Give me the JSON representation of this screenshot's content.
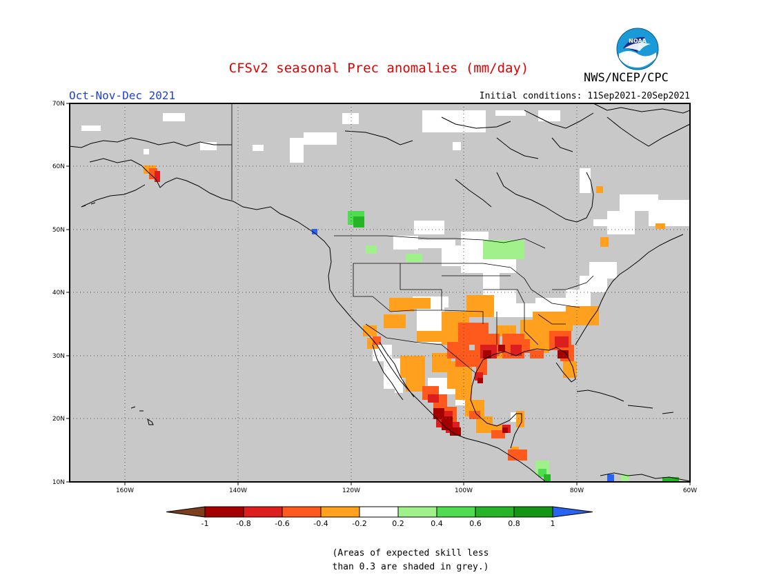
{
  "title": "CFSv2 seasonal Prec anomalies (mm/day)",
  "period": "Oct-Nov-Dec 2021",
  "initial_conditions": "Initial conditions: 11Sep2021-20Sep2021",
  "agency": "NWS/NCEP/CPC",
  "logo_text": "NOAA",
  "lat_labels": [
    "70N",
    "60N",
    "50N",
    "40N",
    "30N",
    "20N",
    "10N"
  ],
  "lon_labels": [
    "160W",
    "140W",
    "120W",
    "100W",
    "80W",
    "60W"
  ],
  "colorbar": {
    "ticks": [
      "-1",
      "-0.8",
      "-0.6",
      "-0.4",
      "-0.2",
      "0.2",
      "0.4",
      "0.6",
      "0.8",
      "1"
    ],
    "colors": [
      "#7b3f1e",
      "#a50000",
      "#dc1e1e",
      "#ff5a1e",
      "#ffa01e",
      "#ffffff",
      "#a0f08c",
      "#50dc50",
      "#28b428",
      "#149614",
      "#2864f0"
    ]
  },
  "note_line1": "(Areas of expected skill less",
  "note_line2": "than 0.3 are shaded in grey.)",
  "colors": {
    "grey": "#c8c8c8",
    "land_line": "#000000",
    "title": "#e00000",
    "period": "#2040e0"
  }
}
